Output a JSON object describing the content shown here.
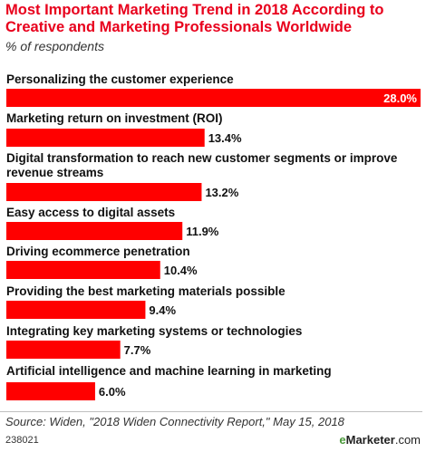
{
  "title": "Most Important Marketing Trend in 2018 According to Creative and Marketing Professionals Worldwide",
  "subtitle": "% of respondents",
  "chart_data": {
    "type": "bar",
    "orientation": "horizontal",
    "title": "Most Important Marketing Trend in 2018 According to Creative and Marketing Professionals Worldwide",
    "subtitle": "% of respondents",
    "categories": [
      "Personalizing the customer experience",
      "Marketing return on investment (ROI)",
      "Digital transformation to reach new customer segments or improve revenue streams",
      "Easy access to digital assets",
      "Driving ecommerce penetration",
      "Providing the best marketing materials possible",
      "Integrating key marketing systems or technologies",
      "Artificial intelligence and machine learning in marketing"
    ],
    "values": [
      28.0,
      13.4,
      13.2,
      11.9,
      10.4,
      9.4,
      7.7,
      6.0
    ],
    "value_labels": [
      "28.0%",
      "13.4%",
      "13.2%",
      "11.9%",
      "10.4%",
      "9.4%",
      "7.7%",
      "6.0%"
    ],
    "xlim": [
      0,
      28.0
    ],
    "bar_color": "#ff0000",
    "grid": false,
    "legend": "none"
  },
  "footer": {
    "source": "Source: Widen, \"2018 Widen Connectivity Report,\" May 15, 2018",
    "chart_id": "238021",
    "brand_e": "e",
    "brand_name": "Marketer",
    "brand_suffix": ".com"
  },
  "colors": {
    "title": "#e8001c",
    "bar": "#ff0000",
    "bar_label_text": "#111111",
    "bar_label_inside_text": "#ffffff",
    "brand_e": "#4a9a3a"
  }
}
